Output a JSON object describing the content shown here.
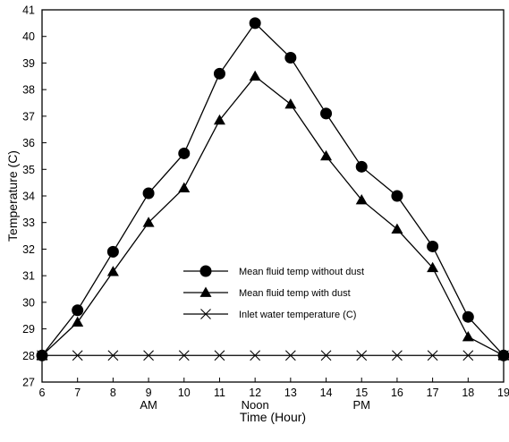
{
  "chart_data": {
    "type": "line",
    "title": "",
    "xlabel": "Time (Hour)",
    "ylabel": "Temperature (C)",
    "xlim": [
      6,
      19
    ],
    "ylim": [
      27,
      41
    ],
    "x_ticks": [
      6,
      7,
      8,
      9,
      10,
      11,
      12,
      13,
      14,
      15,
      16,
      17,
      18,
      19
    ],
    "y_ticks": [
      27,
      28,
      29,
      30,
      31,
      32,
      33,
      34,
      35,
      36,
      37,
      38,
      39,
      40,
      41
    ],
    "period_labels": [
      {
        "text": "AM",
        "x": 9
      },
      {
        "text": "Noon",
        "x": 12
      },
      {
        "text": "PM",
        "x": 15
      }
    ],
    "grid": false,
    "legend_position": "center-left",
    "x": [
      6,
      7,
      8,
      9,
      10,
      11,
      12,
      13,
      14,
      15,
      16,
      17,
      18,
      19
    ],
    "series": [
      {
        "name": "Mean fluid temp without dust",
        "marker": "circle",
        "color": "#000000",
        "values": [
          28.0,
          29.7,
          31.9,
          34.1,
          35.6,
          38.6,
          40.5,
          39.2,
          37.1,
          35.1,
          34.0,
          32.1,
          29.45,
          28.0
        ]
      },
      {
        "name": "Mean fluid temp with dust",
        "marker": "triangle",
        "color": "#000000",
        "values": [
          28.0,
          29.25,
          31.15,
          33.0,
          34.3,
          36.85,
          38.5,
          37.45,
          35.5,
          33.85,
          32.75,
          31.3,
          28.7,
          28.0
        ]
      },
      {
        "name": "Inlet water temperature (C)",
        "marker": "x",
        "color": "#000000",
        "values": [
          28,
          28,
          28,
          28,
          28,
          28,
          28,
          28,
          28,
          28,
          28,
          28,
          28,
          28
        ]
      }
    ]
  }
}
